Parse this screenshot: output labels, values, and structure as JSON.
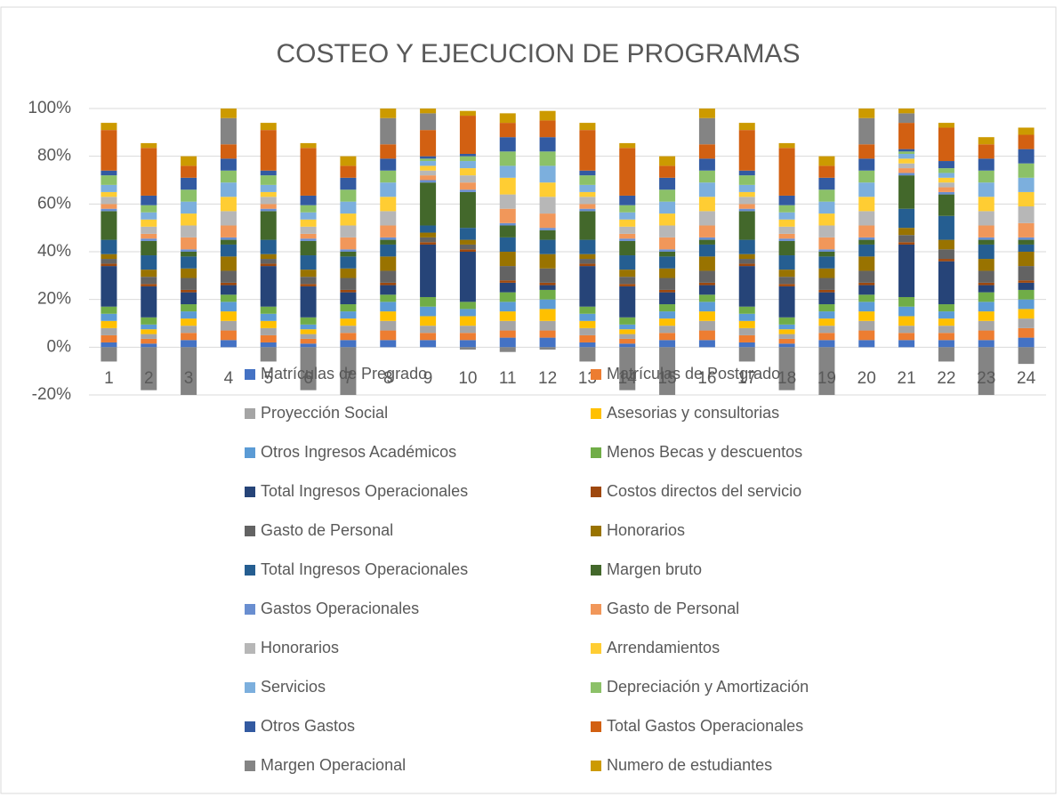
{
  "chart_data": {
    "type": "stacked_bar",
    "title": "COSTEO Y EJECUCION DE PROGRAMAS",
    "categories": [
      "1",
      "2",
      "3",
      "4",
      "5",
      "6",
      "7",
      "8",
      "9",
      "10",
      "11",
      "12",
      "13",
      "14",
      "15",
      "16",
      "17",
      "18",
      "19",
      "20",
      "21",
      "22",
      "23",
      "24"
    ],
    "ylim": [
      -20,
      100
    ],
    "yticks": [
      {
        "value": -20,
        "label": "-20%"
      },
      {
        "value": 0,
        "label": "0%"
      },
      {
        "value": 20,
        "label": "20%"
      },
      {
        "value": 40,
        "label": "40%"
      },
      {
        "value": 60,
        "label": "60%"
      },
      {
        "value": 80,
        "label": "80%"
      },
      {
        "value": 100,
        "label": "100%"
      }
    ],
    "grid": true,
    "legend": "bottom",
    "series": [
      {
        "name": "Matrículas de Pregrado",
        "color": "#4472c4",
        "values": [
          2,
          1.5,
          3,
          3,
          2,
          1.5,
          3,
          3,
          3,
          3,
          4,
          4,
          2,
          1.5,
          3,
          3,
          2,
          1.5,
          3,
          3,
          3,
          3,
          3,
          4
        ]
      },
      {
        "name": "Matrículas de Postgrado",
        "color": "#ed7d31",
        "values": [
          3,
          2,
          3,
          4,
          3,
          2,
          3,
          4,
          3,
          3,
          3,
          3,
          3,
          2,
          3,
          4,
          3,
          2,
          3,
          4,
          3,
          3,
          4,
          4
        ]
      },
      {
        "name": "Proyección Social",
        "color": "#a5a5a5",
        "values": [
          3,
          2,
          3,
          4,
          3,
          2,
          3,
          4,
          3,
          3,
          4,
          4,
          3,
          2,
          3,
          4,
          3,
          2,
          3,
          4,
          3,
          3,
          4,
          4
        ]
      },
      {
        "name": "Asesorias y consultorias",
        "color": "#ffc000",
        "values": [
          3,
          2,
          3,
          4,
          3,
          2,
          3,
          4,
          4,
          4,
          4,
          5,
          3,
          2,
          3,
          4,
          3,
          2,
          3,
          4,
          4,
          3,
          4,
          4
        ]
      },
      {
        "name": "Otros Ingresos Académicos",
        "color": "#5b9bd5",
        "values": [
          3,
          2,
          3,
          4,
          3,
          2,
          3,
          4,
          4,
          3,
          4,
          4,
          3,
          2,
          3,
          4,
          3,
          2,
          3,
          4,
          4,
          3,
          4,
          4
        ]
      },
      {
        "name": "Menos Becas y descuentos",
        "color": "#70ad47",
        "values": [
          3,
          3,
          3,
          3,
          3,
          3,
          3,
          3,
          4,
          3,
          4,
          4,
          3,
          3,
          3,
          3,
          3,
          3,
          3,
          3,
          4,
          3,
          4,
          4
        ]
      },
      {
        "name": "Total Ingresos Operacionales",
        "color": "#264478",
        "values": [
          17,
          13,
          5,
          4,
          17,
          13,
          5,
          4,
          22,
          21,
          4,
          2,
          17,
          13,
          5,
          4,
          17,
          13,
          5,
          4,
          22,
          18,
          3,
          3
        ]
      },
      {
        "name": "Costos directos del servicio",
        "color": "#9e480e",
        "values": [
          1,
          1,
          1,
          1,
          1,
          1,
          1,
          1,
          1,
          1,
          1,
          1,
          1,
          1,
          1,
          1,
          1,
          1,
          1,
          1,
          1,
          1,
          1,
          1
        ]
      },
      {
        "name": "Gasto de Personal",
        "color": "#636363",
        "values": [
          2,
          3,
          5,
          5,
          2,
          3,
          5,
          5,
          2,
          2,
          6,
          6,
          2,
          3,
          5,
          5,
          2,
          3,
          5,
          5,
          3,
          4,
          5,
          6
        ]
      },
      {
        "name": "Honorarios",
        "color": "#997300",
        "values": [
          2,
          3,
          4,
          6,
          2,
          3,
          4,
          6,
          2,
          2,
          6,
          6,
          2,
          3,
          4,
          6,
          2,
          3,
          4,
          6,
          3,
          4,
          5,
          6
        ]
      },
      {
        "name": "Total Ingresos Operacionales",
        "color": "#255e91",
        "values": [
          6,
          6,
          5,
          5,
          6,
          6,
          5,
          5,
          3,
          5,
          6,
          6,
          6,
          6,
          5,
          5,
          6,
          6,
          5,
          5,
          8,
          10,
          6,
          3
        ]
      },
      {
        "name": "Margen bruto",
        "color": "#43682b",
        "values": [
          12,
          6,
          2,
          2,
          12,
          6,
          2,
          2,
          18,
          15,
          5,
          4,
          12,
          6,
          2,
          2,
          12,
          6,
          2,
          2,
          14,
          9,
          2,
          2
        ]
      },
      {
        "name": "Gastos Operacionales",
        "color": "#698ed0",
        "values": [
          1,
          1,
          1,
          1,
          1,
          1,
          1,
          1,
          1,
          1,
          1,
          1,
          1,
          1,
          1,
          1,
          1,
          1,
          1,
          1,
          1,
          1,
          1,
          1
        ]
      },
      {
        "name": "Gasto de Personal",
        "color": "#f1975a",
        "values": [
          2,
          2,
          5,
          5,
          2,
          2,
          5,
          5,
          2,
          3,
          6,
          6,
          2,
          2,
          5,
          5,
          2,
          2,
          5,
          5,
          2,
          2,
          5,
          6
        ]
      },
      {
        "name": "Honorarios",
        "color": "#b7b7b7",
        "values": [
          3,
          3,
          5,
          6,
          3,
          3,
          5,
          6,
          2,
          3,
          6,
          7,
          3,
          3,
          5,
          6,
          3,
          3,
          5,
          6,
          2,
          2,
          6,
          7
        ]
      },
      {
        "name": "Arrendamientos",
        "color": "#ffcd33",
        "values": [
          2,
          3,
          5,
          6,
          2,
          3,
          5,
          6,
          2,
          3,
          7,
          6,
          2,
          3,
          5,
          6,
          2,
          3,
          5,
          6,
          2,
          2,
          6,
          6
        ]
      },
      {
        "name": "Servicios",
        "color": "#7cafdd",
        "values": [
          3,
          3,
          5,
          6,
          3,
          3,
          5,
          6,
          2,
          3,
          5,
          7,
          3,
          3,
          5,
          6,
          3,
          3,
          5,
          6,
          2,
          2,
          6,
          6
        ]
      },
      {
        "name": "Depreciación y Amortización",
        "color": "#8cc168",
        "values": [
          4,
          3,
          5,
          5,
          4,
          3,
          5,
          5,
          1,
          2,
          6,
          6,
          4,
          3,
          5,
          5,
          4,
          3,
          5,
          5,
          1,
          2,
          5,
          6
        ]
      },
      {
        "name": "Otros Gastos",
        "color": "#335aa1",
        "values": [
          2,
          4,
          5,
          5,
          2,
          4,
          5,
          5,
          1,
          1,
          6,
          6,
          2,
          4,
          5,
          5,
          2,
          4,
          5,
          5,
          1,
          3,
          5,
          6
        ]
      },
      {
        "name": "Total Gastos  Operacionales",
        "color": "#d26012",
        "values": [
          17,
          20,
          5,
          6,
          17,
          20,
          5,
          6,
          11,
          16,
          6,
          7,
          17,
          20,
          5,
          6,
          17,
          20,
          5,
          6,
          11,
          14,
          6,
          6
        ]
      },
      {
        "name": "Margen Operacional",
        "color": "#848484",
        "values": [
          -6,
          -18,
          -20,
          11,
          -6,
          -18,
          -20,
          11,
          7,
          -1,
          -2,
          -1,
          -6,
          -18,
          -20,
          11,
          -6,
          -18,
          -20,
          11,
          4,
          -6,
          -20,
          -7
        ]
      },
      {
        "name": "Numero de estudiantes",
        "color": "#cc9a00",
        "values": [
          3,
          2,
          4,
          4,
          3,
          2,
          4,
          4,
          2,
          2,
          4,
          4,
          3,
          2,
          4,
          4,
          3,
          2,
          4,
          4,
          2,
          2,
          3,
          3
        ]
      }
    ]
  }
}
